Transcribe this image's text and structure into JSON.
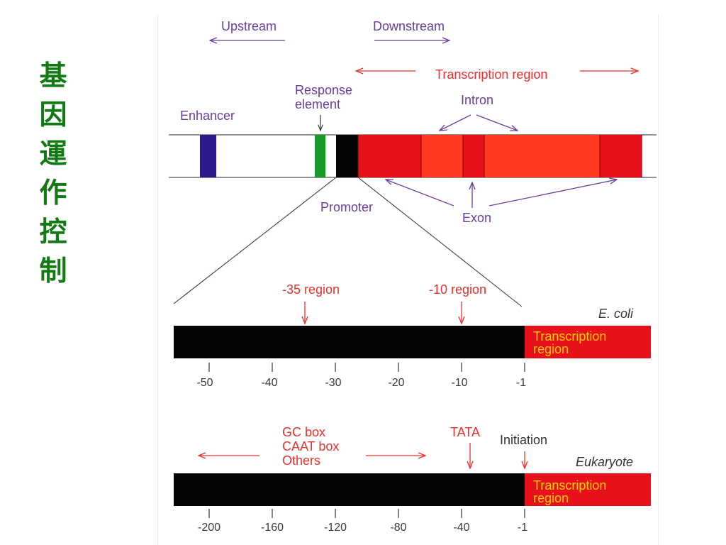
{
  "title": [
    "基",
    "因",
    "運",
    "作",
    "控",
    "制"
  ],
  "gene_map": {
    "upstream": "Upstream",
    "downstream": "Downstream",
    "transcription_region": "Transcription region",
    "response_element": [
      "Response",
      "element"
    ],
    "enhancer": "Enhancer",
    "intron": "Intron",
    "promoter": "Promoter",
    "exon": "Exon"
  },
  "ecoli": {
    "organism": "E. coli",
    "region_35": "-35 region",
    "region_10": "-10 region",
    "transcription_region": [
      "Transcription",
      "region"
    ],
    "ticks": [
      "-50",
      "-40",
      "-30",
      "-20",
      "-10",
      "-1"
    ]
  },
  "eukaryote": {
    "organism": "Eukaryote",
    "elements": [
      "GC box",
      "CAAT box",
      "Others"
    ],
    "tata": "TATA",
    "initiation": "Initiation",
    "transcription_region": [
      "Transcription",
      "region"
    ],
    "ticks": [
      "-200",
      "-160",
      "-120",
      "-80",
      "-40",
      "-1"
    ]
  },
  "colors": {
    "title": "#127a12",
    "purple": "#6a3d9a",
    "red": "#e8322d",
    "exon_red": "#e8101a",
    "intron_red": "#ff3a20",
    "enhancer": "#2a1a8c",
    "response_element": "#1a9a2a",
    "bar_label": "#ffd200"
  }
}
